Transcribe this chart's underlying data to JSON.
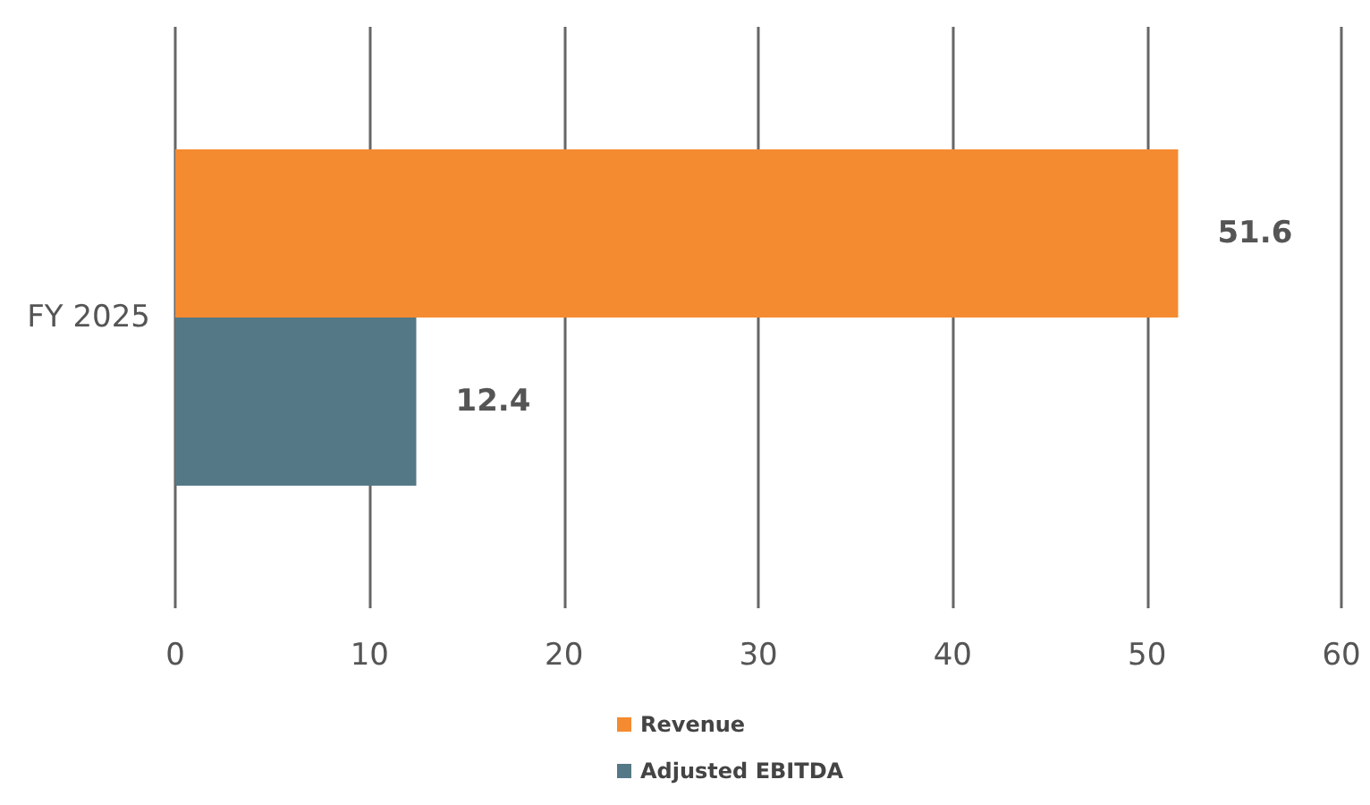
{
  "chart_data": {
    "type": "bar",
    "orientation": "horizontal",
    "categories": [
      "FY 2025"
    ],
    "series": [
      {
        "name": "Revenue",
        "color": "#f58b31",
        "values": [
          51.6
        ]
      },
      {
        "name": "Adjusted EBITDA",
        "color": "#557886",
        "values": [
          12.4
        ]
      }
    ],
    "xlim": [
      0,
      60
    ],
    "xticks": [
      0,
      10,
      20,
      30,
      40,
      50,
      60
    ],
    "grid": "x",
    "legend": "bottom",
    "data_labels": true
  }
}
